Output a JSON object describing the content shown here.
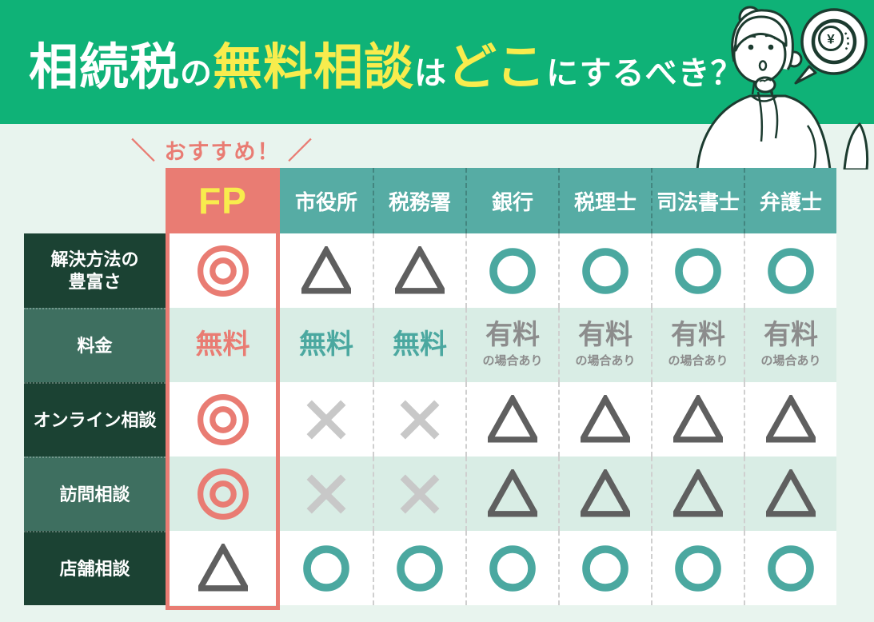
{
  "colors": {
    "banner_green": "#0FB277",
    "page_bg": "#E8F4EE",
    "accent_salmon": "#E97C73",
    "accent_yellow": "#F8EC4D",
    "header_teal": "#56ACA4",
    "row_label_dark": "#1B4233",
    "row_label_medium": "#3E6F60",
    "row_alt_mint": "#D9EDE5",
    "mark_teal": "#4BA8A0",
    "mark_dark_gray": "#5F5F5F",
    "mark_light_gray": "#C8C8C8",
    "paid_gray": "#8C8C8C",
    "line_dark": "#1C3B2F"
  },
  "banner": {
    "title": "相続税の無料相談はどこにするべき？",
    "title_segments": [
      {
        "text": "相続税",
        "color": "#FFFFFF",
        "size": "large"
      },
      {
        "text": "の",
        "color": "#FFFFFF",
        "size": "small"
      },
      {
        "text": "無料相談",
        "color": "#F8EC4D",
        "size": "large"
      },
      {
        "text": "は",
        "color": "#FFFFFF",
        "size": "small"
      },
      {
        "text": "どこ",
        "color": "#F8EC4D",
        "size": "large"
      },
      {
        "text": "にするべき？",
        "color": "#FFFFFF",
        "size": "small"
      }
    ]
  },
  "recommend": {
    "slash_left": "＼",
    "label": "おすすめ！",
    "slash_right": "／"
  },
  "illustration": {
    "description": "thinking woman with speech bubble",
    "coin_symbol": "¥"
  },
  "table": {
    "columns": [
      {
        "label": "FP",
        "recommended": true
      },
      {
        "label": "市役所"
      },
      {
        "label": "税務署"
      },
      {
        "label": "銀行"
      },
      {
        "label": "税理士"
      },
      {
        "label": "司法書士"
      },
      {
        "label": "弁護士"
      }
    ],
    "rows": [
      {
        "label": "解決方法の\n豊富さ",
        "cells": [
          {
            "mark": "double-circle"
          },
          {
            "mark": "triangle"
          },
          {
            "mark": "triangle"
          },
          {
            "mark": "circle"
          },
          {
            "mark": "circle"
          },
          {
            "mark": "circle"
          },
          {
            "mark": "circle"
          }
        ]
      },
      {
        "label": "料金",
        "cells": [
          {
            "text": "無料",
            "variant": "free-accent"
          },
          {
            "text": "無料",
            "variant": "free"
          },
          {
            "text": "無料",
            "variant": "free"
          },
          {
            "text": "有料",
            "sub": "の場合あり",
            "variant": "paid"
          },
          {
            "text": "有料",
            "sub": "の場合あり",
            "variant": "paid"
          },
          {
            "text": "有料",
            "sub": "の場合あり",
            "variant": "paid"
          },
          {
            "text": "有料",
            "sub": "の場合あり",
            "variant": "paid"
          }
        ]
      },
      {
        "label": "オンライン相談",
        "cells": [
          {
            "mark": "double-circle"
          },
          {
            "mark": "cross"
          },
          {
            "mark": "cross"
          },
          {
            "mark": "triangle"
          },
          {
            "mark": "triangle"
          },
          {
            "mark": "triangle"
          },
          {
            "mark": "triangle"
          }
        ]
      },
      {
        "label": "訪問相談",
        "cells": [
          {
            "mark": "double-circle"
          },
          {
            "mark": "cross"
          },
          {
            "mark": "cross"
          },
          {
            "mark": "triangle"
          },
          {
            "mark": "triangle"
          },
          {
            "mark": "triangle"
          },
          {
            "mark": "triangle"
          }
        ]
      },
      {
        "label": "店舗相談",
        "cells": [
          {
            "mark": "triangle"
          },
          {
            "mark": "circle"
          },
          {
            "mark": "circle"
          },
          {
            "mark": "circle"
          },
          {
            "mark": "circle"
          },
          {
            "mark": "circle"
          },
          {
            "mark": "circle"
          }
        ]
      }
    ]
  },
  "chart_data": {
    "type": "table",
    "title": "相続税の無料相談はどこにするべき？",
    "annotation": "＼ おすすめ！ ／",
    "highlighted_column": "FP",
    "columns": [
      "FP",
      "市役所",
      "税務署",
      "銀行",
      "税理士",
      "司法書士",
      "弁護士"
    ],
    "row_labels": [
      "解決方法の豊富さ",
      "料金",
      "オンライン相談",
      "訪問相談",
      "店舗相談"
    ],
    "cells": [
      [
        "◎",
        "△",
        "△",
        "○",
        "○",
        "○",
        "○"
      ],
      [
        "無料",
        "無料",
        "無料",
        "有料の場合あり",
        "有料の場合あり",
        "有料の場合あり",
        "有料の場合あり"
      ],
      [
        "◎",
        "×",
        "×",
        "△",
        "△",
        "△",
        "△"
      ],
      [
        "◎",
        "×",
        "×",
        "△",
        "△",
        "△",
        "△"
      ],
      [
        "△",
        "○",
        "○",
        "○",
        "○",
        "○",
        "○"
      ]
    ]
  }
}
